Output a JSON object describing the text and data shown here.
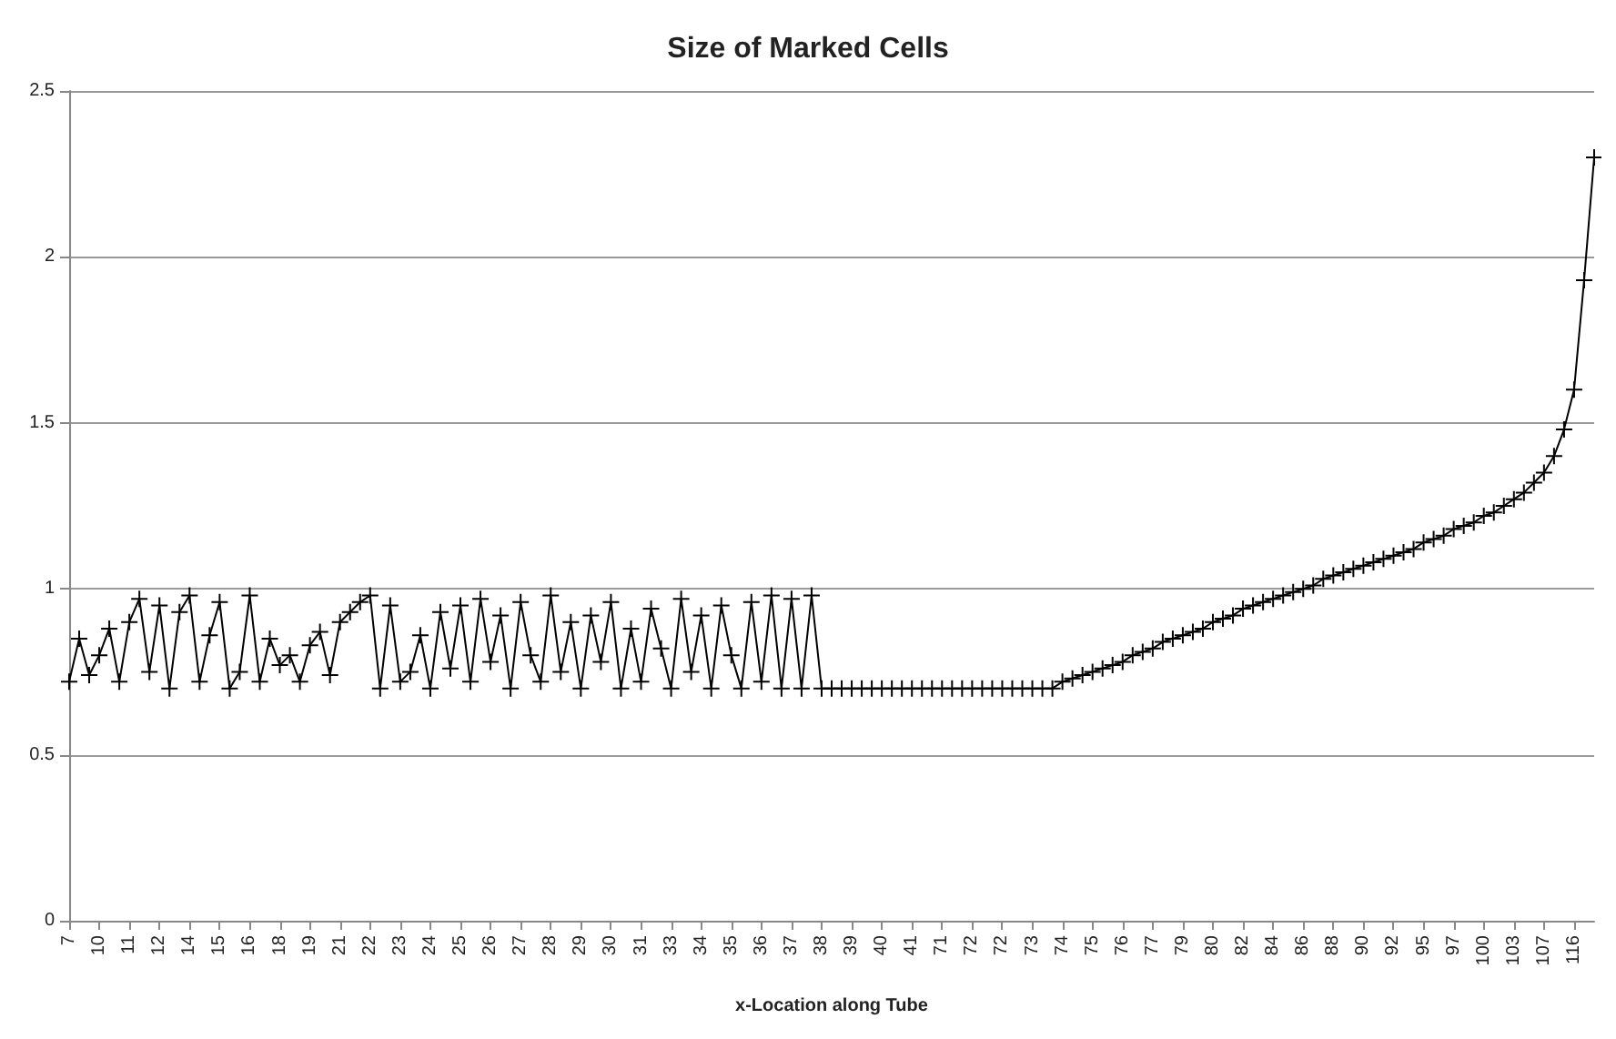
{
  "chart_data": {
    "type": "line",
    "title": "Size of Marked Cells",
    "xlabel": "x-Location along Tube",
    "categories": [
      "7",
      null,
      null,
      "10",
      null,
      null,
      "11",
      null,
      null,
      "12",
      null,
      null,
      "14",
      null,
      null,
      "15",
      null,
      null,
      "16",
      null,
      null,
      "18",
      null,
      null,
      "19",
      null,
      null,
      "21",
      null,
      null,
      "22",
      null,
      null,
      "23",
      null,
      null,
      "24",
      null,
      null,
      "25",
      null,
      null,
      "26",
      null,
      null,
      "27",
      null,
      null,
      "28",
      null,
      null,
      "29",
      null,
      null,
      "30",
      null,
      null,
      "31",
      null,
      null,
      "33",
      null,
      null,
      "34",
      null,
      null,
      "35",
      null,
      null,
      "36",
      null,
      null,
      "37",
      null,
      null,
      "38",
      null,
      null,
      "39",
      null,
      null,
      "40",
      null,
      null,
      "41",
      null,
      null,
      "71",
      null,
      null,
      "72",
      null,
      null,
      "72",
      null,
      null,
      "73",
      null,
      null,
      "74",
      null,
      null,
      "75",
      null,
      null,
      "76",
      null,
      null,
      "77",
      null,
      null,
      "79",
      null,
      null,
      "80",
      null,
      null,
      "82",
      null,
      null,
      "84",
      null,
      null,
      "86",
      null,
      null,
      "88",
      null,
      null,
      "90",
      null,
      null,
      "92",
      null,
      null,
      "95",
      null,
      null,
      "97",
      null,
      null,
      "100",
      null,
      null,
      "103",
      null,
      null,
      "107",
      null,
      null,
      "116",
      null,
      null
    ],
    "series": [
      {
        "color": "#000000",
        "values": [
          0.72,
          0.85,
          0.74,
          0.8,
          0.88,
          0.72,
          0.9,
          0.97,
          0.75,
          0.95,
          0.7,
          0.93,
          0.98,
          0.72,
          0.86,
          0.96,
          0.7,
          0.75,
          0.98,
          0.72,
          0.85,
          0.77,
          0.8,
          0.72,
          0.83,
          0.87,
          0.74,
          0.9,
          0.93,
          0.96,
          0.98,
          0.7,
          0.95,
          0.72,
          0.75,
          0.86,
          0.7,
          0.93,
          0.76,
          0.95,
          0.72,
          0.97,
          0.78,
          0.92,
          0.7,
          0.96,
          0.8,
          0.72,
          0.98,
          0.75,
          0.9,
          0.7,
          0.92,
          0.78,
          0.96,
          0.7,
          0.88,
          0.72,
          0.94,
          0.82,
          0.7,
          0.97,
          0.75,
          0.92,
          0.7,
          0.95,
          0.8,
          0.7,
          0.96,
          0.72,
          0.98,
          0.7,
          0.97,
          0.7,
          0.98,
          0.7,
          0.7,
          0.7,
          0.7,
          0.7,
          0.7,
          0.7,
          0.7,
          0.7,
          0.7,
          0.7,
          0.7,
          0.7,
          0.7,
          0.7,
          0.7,
          0.7,
          0.7,
          0.7,
          0.7,
          0.7,
          0.7,
          0.7,
          0.7,
          0.72,
          0.73,
          0.74,
          0.75,
          0.76,
          0.77,
          0.78,
          0.8,
          0.81,
          0.82,
          0.84,
          0.85,
          0.86,
          0.87,
          0.88,
          0.9,
          0.91,
          0.92,
          0.94,
          0.95,
          0.96,
          0.97,
          0.98,
          0.99,
          1.0,
          1.01,
          1.03,
          1.04,
          1.05,
          1.06,
          1.07,
          1.08,
          1.09,
          1.1,
          1.11,
          1.12,
          1.14,
          1.15,
          1.16,
          1.18,
          1.19,
          1.2,
          1.22,
          1.23,
          1.25,
          1.27,
          1.29,
          1.32,
          1.35,
          1.4,
          1.48,
          1.6,
          1.93,
          2.3
        ]
      }
    ],
    "ylim": [
      0,
      2.5
    ],
    "yticks": [
      0,
      0.5,
      1,
      1.5,
      2,
      2.5
    ],
    "grid": "y",
    "marker": "cross",
    "line_style": "solid"
  }
}
